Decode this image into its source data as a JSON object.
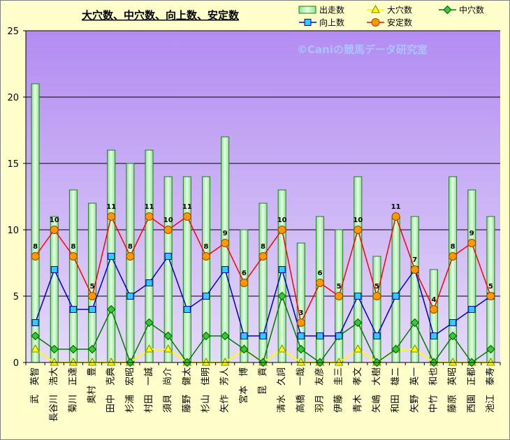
{
  "watermark": "©Caniの競馬データ研究室",
  "chart_data": {
    "type": "bar",
    "title": "大穴数、中穴数、向上数、安定数",
    "categories": [
      "武　英智",
      "長谷川　浩大",
      "菊川　正達",
      "奥村　豊",
      "田中　克典",
      "杉浦　宏昭",
      "村田　一誠",
      "須貝　尚介",
      "藤野　健太",
      "杉山　佳明",
      "矢作　芳人",
      "宮本　博",
      "昆　貢",
      "清水　久詞",
      "高橋　一哉",
      "羽月　友彦",
      "伊藤　圭三",
      "青木　孝文",
      "矢嶋　大樹",
      "和田　雄二",
      "矢野　英一",
      "中竹　和也",
      "藤原　英昭",
      "西園　正都",
      "池江　泰寿"
    ],
    "series": [
      {
        "name": "出走数",
        "type": "bar",
        "color": "#8fe08f",
        "stroke": "#1e7d1e",
        "values": [
          21,
          11,
          13,
          12,
          16,
          15,
          16,
          14,
          14,
          14,
          17,
          10,
          12,
          13,
          9,
          11,
          10,
          14,
          8,
          11,
          11,
          7,
          14,
          13,
          11
        ]
      },
      {
        "name": "大穴数",
        "type": "line",
        "color": "#ffff00",
        "marker": "triangle",
        "marker_fill": "#ffff00",
        "marker_stroke": "#808000",
        "values": [
          1,
          0,
          0,
          0,
          0,
          0,
          1,
          1,
          0,
          0,
          0,
          1,
          0,
          1,
          0,
          0,
          0,
          1,
          0,
          1,
          1,
          0,
          0,
          0,
          0
        ]
      },
      {
        "name": "中穴数",
        "type": "line",
        "color": "#007a00",
        "marker": "diamond",
        "marker_fill": "#33cc33",
        "marker_stroke": "#005500",
        "values": [
          2,
          1,
          1,
          1,
          4,
          0,
          3,
          2,
          0,
          2,
          2,
          1,
          0,
          5,
          1,
          0,
          2,
          3,
          0,
          1,
          3,
          0,
          2,
          0,
          1
        ]
      },
      {
        "name": "向上数",
        "type": "line",
        "color": "#0000cc",
        "marker": "square",
        "marker_fill": "#33ccff",
        "marker_stroke": "#0000aa",
        "values": [
          3,
          7,
          4,
          4,
          8,
          5,
          6,
          8,
          4,
          5,
          7,
          2,
          2,
          7,
          2,
          2,
          2,
          5,
          2,
          5,
          7,
          2,
          3,
          4,
          5
        ]
      },
      {
        "name": "安定数",
        "type": "line",
        "color": "#ff0000",
        "marker": "circle",
        "marker_fill": "#ff9900",
        "marker_stroke": "#994400",
        "data_labels": true,
        "values": [
          8,
          10,
          8,
          5,
          11,
          8,
          11,
          10,
          11,
          8,
          9,
          6,
          8,
          10,
          3,
          6,
          5,
          10,
          5,
          11,
          7,
          4,
          8,
          9,
          5
        ]
      }
    ],
    "ylim": [
      0,
      25
    ],
    "yticks": [
      0,
      5,
      10,
      15,
      20,
      25
    ],
    "grid": true,
    "legend": "top-right"
  }
}
